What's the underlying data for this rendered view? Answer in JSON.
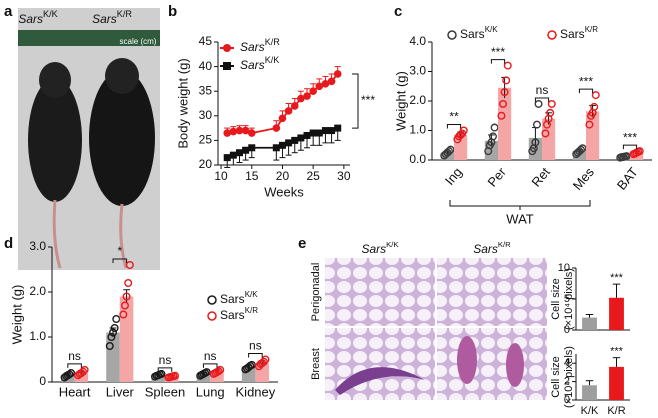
{
  "figure": {
    "panel_labels": [
      "a",
      "b",
      "c",
      "d",
      "e"
    ],
    "photo_a": {
      "labels": [
        [
          "Sars",
          "K/K"
        ],
        [
          "Sars",
          "K/R"
        ]
      ],
      "scale": "scale (cm)"
    },
    "photo_e": {
      "columns": [
        [
          "Sars",
          "K/K"
        ],
        [
          "Sars",
          "K/R"
        ]
      ],
      "rows": [
        "Perigonadal",
        "Breast"
      ]
    }
  },
  "chart_data": [
    {
      "type": "line",
      "xlabel": "Weeks",
      "ylabel": "Body weight (g)",
      "x": [
        11,
        12,
        13,
        14,
        15,
        19,
        20,
        21,
        22,
        23,
        24,
        25,
        26,
        27,
        28,
        29
      ],
      "xlim": [
        9.5,
        31
      ],
      "xticks": [
        10,
        15,
        20,
        25,
        30
      ],
      "ylim": [
        20,
        45
      ],
      "yticks": [
        20,
        25,
        30,
        35,
        40,
        45
      ],
      "series": [
        {
          "name": [
            "Sars",
            "K/R"
          ],
          "color": "#e8191c",
          "marker": "circle",
          "values": [
            26.5,
            26.8,
            27,
            27,
            26.5,
            27.5,
            29.5,
            31,
            32,
            33.5,
            34,
            35,
            36,
            36.5,
            37,
            38.5
          ],
          "errors": [
            1,
            1,
            1,
            1,
            1,
            1.5,
            1.5,
            1.5,
            1.5,
            1.5,
            1.5,
            1.5,
            1.5,
            1.5,
            1.5,
            1.5
          ]
        },
        {
          "name": [
            "Sars",
            "K/K"
          ],
          "color": "#111111",
          "marker": "square",
          "values": [
            21.5,
            22,
            22.5,
            23,
            23.5,
            23.5,
            24,
            24.5,
            25,
            25.5,
            26,
            26.5,
            26.5,
            27,
            27,
            27.5
          ],
          "errors": [
            2,
            2,
            2,
            2,
            2,
            2.5,
            2.5,
            2.5,
            2.5,
            2.5,
            2.5,
            2.5,
            2.5,
            2.5,
            2.5,
            2.5
          ]
        }
      ],
      "significance": "***"
    },
    {
      "type": "bar",
      "ylabel": "Weight (g)",
      "categories": [
        "Ing",
        "Per",
        "Ret",
        "Mes",
        "BAT"
      ],
      "ylim": [
        0,
        4
      ],
      "yticks": [
        {
          "value": 0,
          "label": "0.0"
        },
        {
          "value": 1,
          "label": "1.0"
        },
        {
          "value": 2,
          "label": "2.0"
        },
        {
          "value": 3,
          "label": "3.0"
        },
        {
          "value": 4,
          "label": "4.0"
        }
      ],
      "series": [
        {
          "name": [
            "Sars",
            "K/K"
          ],
          "color": "#a6a6a6",
          "point_color": "#3a3a3a",
          "values": [
            0.25,
            0.65,
            0.75,
            0.3,
            0.1
          ],
          "errors": [
            0.05,
            0.2,
            0.35,
            0.05,
            0.02
          ],
          "points": [
            [
              0.15,
              0.2,
              0.25,
              0.3,
              0.35
            ],
            [
              0.3,
              0.5,
              0.6,
              0.8,
              1.1
            ],
            [
              0.3,
              0.4,
              0.6,
              1.2,
              1.9
            ],
            [
              0.2,
              0.25,
              0.3,
              0.35,
              0.4
            ],
            [
              0.08,
              0.1,
              0.1,
              0.12,
              0.13
            ]
          ]
        },
        {
          "name": [
            "Sars",
            "K/R"
          ],
          "color": "#f4a6a6",
          "point_color": "#e8191c",
          "values": [
            0.85,
            2.45,
            1.4,
            1.65,
            0.25
          ],
          "errors": [
            0.1,
            0.35,
            0.2,
            0.2,
            0.05
          ],
          "points": [
            [
              0.7,
              0.8,
              0.85,
              0.9,
              1.0
            ],
            [
              1.5,
              1.9,
              2.3,
              2.7,
              3.2
            ],
            [
              0.9,
              1.2,
              1.4,
              1.6,
              1.9
            ],
            [
              1.2,
              1.5,
              1.6,
              1.8,
              2.2
            ],
            [
              0.2,
              0.22,
              0.25,
              0.28,
              0.3
            ]
          ]
        }
      ],
      "significance": [
        "**",
        "***",
        "ns",
        "***",
        "***"
      ],
      "group_label": "WAT"
    },
    {
      "type": "bar",
      "ylabel": "Weight (g)",
      "categories": [
        "Heart",
        "Liver",
        "Spleen",
        "Lung",
        "Kidney"
      ],
      "ylim": [
        0,
        3
      ],
      "yticks": [
        0,
        {
          "value": 1,
          "label": "1.0"
        },
        {
          "value": 2,
          "label": "2.0"
        },
        {
          "value": 3,
          "label": "3.0"
        }
      ],
      "series": [
        {
          "name": [
            "Sars",
            "K/K"
          ],
          "color": "#a6a6a6",
          "point_color": "#1a1a1a",
          "values": [
            0.15,
            1.1,
            0.15,
            0.18,
            0.33
          ],
          "errors": [
            0.03,
            0.1,
            0.02,
            0.03,
            0.04
          ],
          "points": [
            [
              0.1,
              0.13,
              0.15,
              0.17,
              0.2
            ],
            [
              0.8,
              1.0,
              1.1,
              1.2,
              1.4
            ],
            [
              0.12,
              0.14,
              0.15,
              0.17,
              0.18
            ],
            [
              0.14,
              0.16,
              0.18,
              0.2,
              0.22
            ],
            [
              0.28,
              0.3,
              0.33,
              0.36,
              0.38
            ]
          ]
        },
        {
          "name": [
            "Sars",
            "K/R"
          ],
          "color": "#f4a6a6",
          "point_color": "#e8191c",
          "values": [
            0.2,
            1.9,
            0.12,
            0.22,
            0.42
          ],
          "errors": [
            0.04,
            0.15,
            0.02,
            0.04,
            0.05
          ],
          "points": [
            [
              0.15,
              0.18,
              0.2,
              0.23,
              0.27
            ],
            [
              1.5,
              1.7,
              1.9,
              2.2,
              2.6
            ],
            [
              0.1,
              0.11,
              0.12,
              0.13,
              0.14
            ],
            [
              0.18,
              0.2,
              0.22,
              0.24,
              0.27
            ],
            [
              0.35,
              0.4,
              0.42,
              0.45,
              0.5
            ]
          ]
        }
      ],
      "significance": [
        "ns",
        "*",
        "ns",
        "ns",
        "ns"
      ]
    },
    {
      "type": "bar",
      "ylabel": [
        "Cell size",
        "(×10⁴ pixels)"
      ],
      "categories": [
        null,
        null
      ],
      "ylim": [
        0,
        10
      ],
      "yticks": [
        0,
        5,
        10
      ],
      "series": [
        {
          "colors": [
            "#9e9e9e",
            "#e8191c"
          ],
          "values": [
            2,
            5.2
          ],
          "errors": [
            0.5,
            2.2
          ]
        }
      ],
      "significance": "***"
    },
    {
      "type": "bar",
      "ylabel": [
        "Cell size",
        "(×10⁴ pixels)"
      ],
      "categories": [
        "K/K",
        "K/R"
      ],
      "ylim": [
        0,
        5
      ],
      "yticks": [
        0,
        2,
        4
      ],
      "series": [
        {
          "colors": [
            "#9e9e9e",
            "#e8191c"
          ],
          "values": [
            1.6,
            3.6
          ],
          "errors": [
            0.5,
            1.0
          ]
        }
      ],
      "significance": "***"
    }
  ]
}
